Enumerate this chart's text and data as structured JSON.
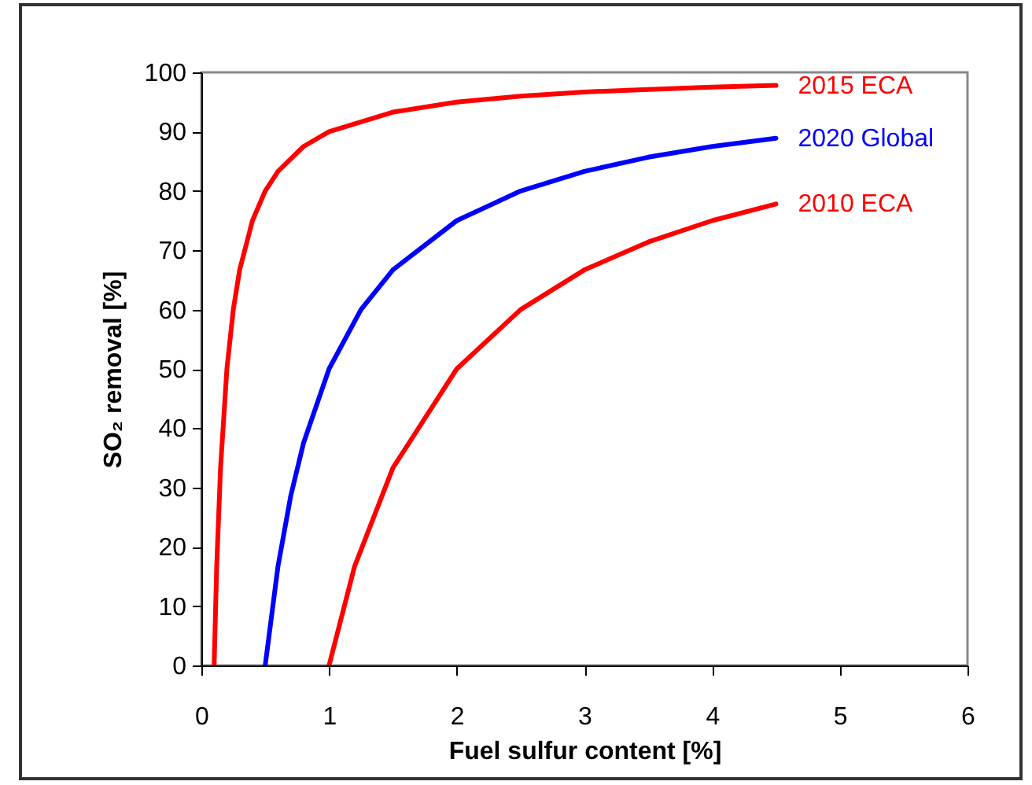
{
  "chart_data": {
    "type": "line",
    "xlabel": "Fuel sulfur content [%]",
    "ylabel": "SO₂ removal [%]",
    "xlim": [
      0,
      6
    ],
    "xticks": [
      0,
      1,
      2,
      3,
      4,
      5,
      6
    ],
    "ylim": [
      0,
      100
    ],
    "yticks": [
      0,
      10,
      20,
      30,
      40,
      50,
      60,
      70,
      80,
      90,
      100
    ],
    "grid": false,
    "legend": false,
    "marker": "none",
    "line_style": "solid",
    "series": [
      {
        "name": "2015 ECA",
        "color": "#ff0000",
        "x": [
          0.1,
          0.12,
          0.15,
          0.2,
          0.25,
          0.3,
          0.4,
          0.5,
          0.6,
          0.8,
          1,
          1.5,
          2,
          2.5,
          3,
          3.5,
          4,
          4.5
        ],
        "values": [
          0,
          16.7,
          33.3,
          50,
          60,
          66.7,
          75,
          80,
          83.3,
          87.5,
          90,
          93.3,
          95,
          96,
          96.7,
          97.1,
          97.5,
          97.8
        ]
      },
      {
        "name": "2020 Global",
        "color": "#0000ff",
        "x": [
          0.5,
          0.6,
          0.7,
          0.8,
          1,
          1.25,
          1.5,
          2,
          2.5,
          3,
          3.5,
          4,
          4.5
        ],
        "values": [
          0,
          16.7,
          28.6,
          37.5,
          50,
          60,
          66.7,
          75,
          80,
          83.3,
          85.7,
          87.5,
          88.9
        ]
      },
      {
        "name": "2010 ECA",
        "color": "#ff0000",
        "x": [
          1,
          1.2,
          1.5,
          2,
          2.5,
          3,
          3.5,
          4,
          4.5
        ],
        "values": [
          0,
          16.7,
          33.3,
          50,
          60,
          66.7,
          71.4,
          75,
          77.8
        ]
      }
    ]
  }
}
